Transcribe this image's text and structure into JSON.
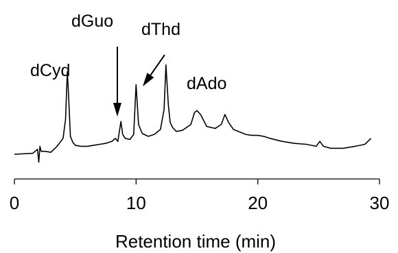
{
  "chart_data": {
    "type": "line",
    "title": "",
    "xlabel": "Retention time (min)",
    "ylabel": "",
    "xlim": [
      0,
      30
    ],
    "xticks": [
      0,
      10,
      20,
      30
    ],
    "xtick_labels": [
      "0",
      "10",
      "20",
      "30"
    ],
    "grid": false,
    "series": [
      {
        "color": "#000000",
        "x": [
          0,
          1.5,
          1.9,
          2.0,
          2.1,
          2.2,
          2.5,
          3.0,
          3.5,
          4.0,
          4.2,
          4.35,
          4.45,
          4.6,
          4.8,
          5.0,
          5.5,
          6.0,
          6.5,
          7.0,
          7.5,
          8.0,
          8.3,
          8.5,
          8.6,
          8.75,
          8.9,
          9.1,
          9.5,
          9.8,
          10.0,
          10.2,
          10.5,
          11.0,
          11.5,
          12.0,
          12.3,
          12.45,
          12.65,
          12.8,
          13.0,
          13.3,
          13.8,
          14.5,
          14.8,
          15.0,
          15.3,
          15.8,
          16.5,
          17.0,
          17.3,
          17.6,
          18.0,
          19.0,
          19.5,
          20.0,
          20.5,
          21.0,
          22.0,
          23.0,
          24.0,
          24.8,
          25.1,
          25.4,
          26.0,
          27.0,
          28.0,
          28.8,
          29.3
        ],
        "y": [
          0,
          0.1,
          0.5,
          -0.8,
          0.8,
          0.3,
          0.3,
          0.2,
          0.8,
          1.6,
          3.5,
          8.3,
          6.0,
          1.8,
          1.2,
          0.9,
          0.8,
          0.8,
          0.9,
          1.0,
          1.1,
          1.3,
          1.6,
          1.3,
          2.1,
          3.3,
          2.0,
          1.6,
          1.5,
          2.0,
          7.0,
          3.0,
          2.1,
          1.8,
          2.0,
          2.5,
          4.5,
          9.0,
          5.0,
          3.2,
          2.7,
          2.3,
          2.4,
          3.0,
          4.2,
          4.4,
          4.0,
          2.8,
          2.6,
          3.0,
          4.0,
          3.2,
          2.5,
          2.0,
          1.9,
          1.9,
          1.8,
          1.6,
          1.3,
          1.1,
          1.0,
          0.8,
          1.3,
          0.8,
          0.6,
          0.6,
          0.8,
          1.0,
          1.6
        ]
      }
    ],
    "annotations": [
      {
        "text": "dCyd",
        "x": 4.4,
        "arrow": false
      },
      {
        "text": "dGuo",
        "x": 8.3,
        "arrow": true
      },
      {
        "text": "dThd",
        "x": 10.0,
        "arrow": true
      },
      {
        "text": "dAdo",
        "x": 12.6,
        "arrow": false
      }
    ]
  }
}
